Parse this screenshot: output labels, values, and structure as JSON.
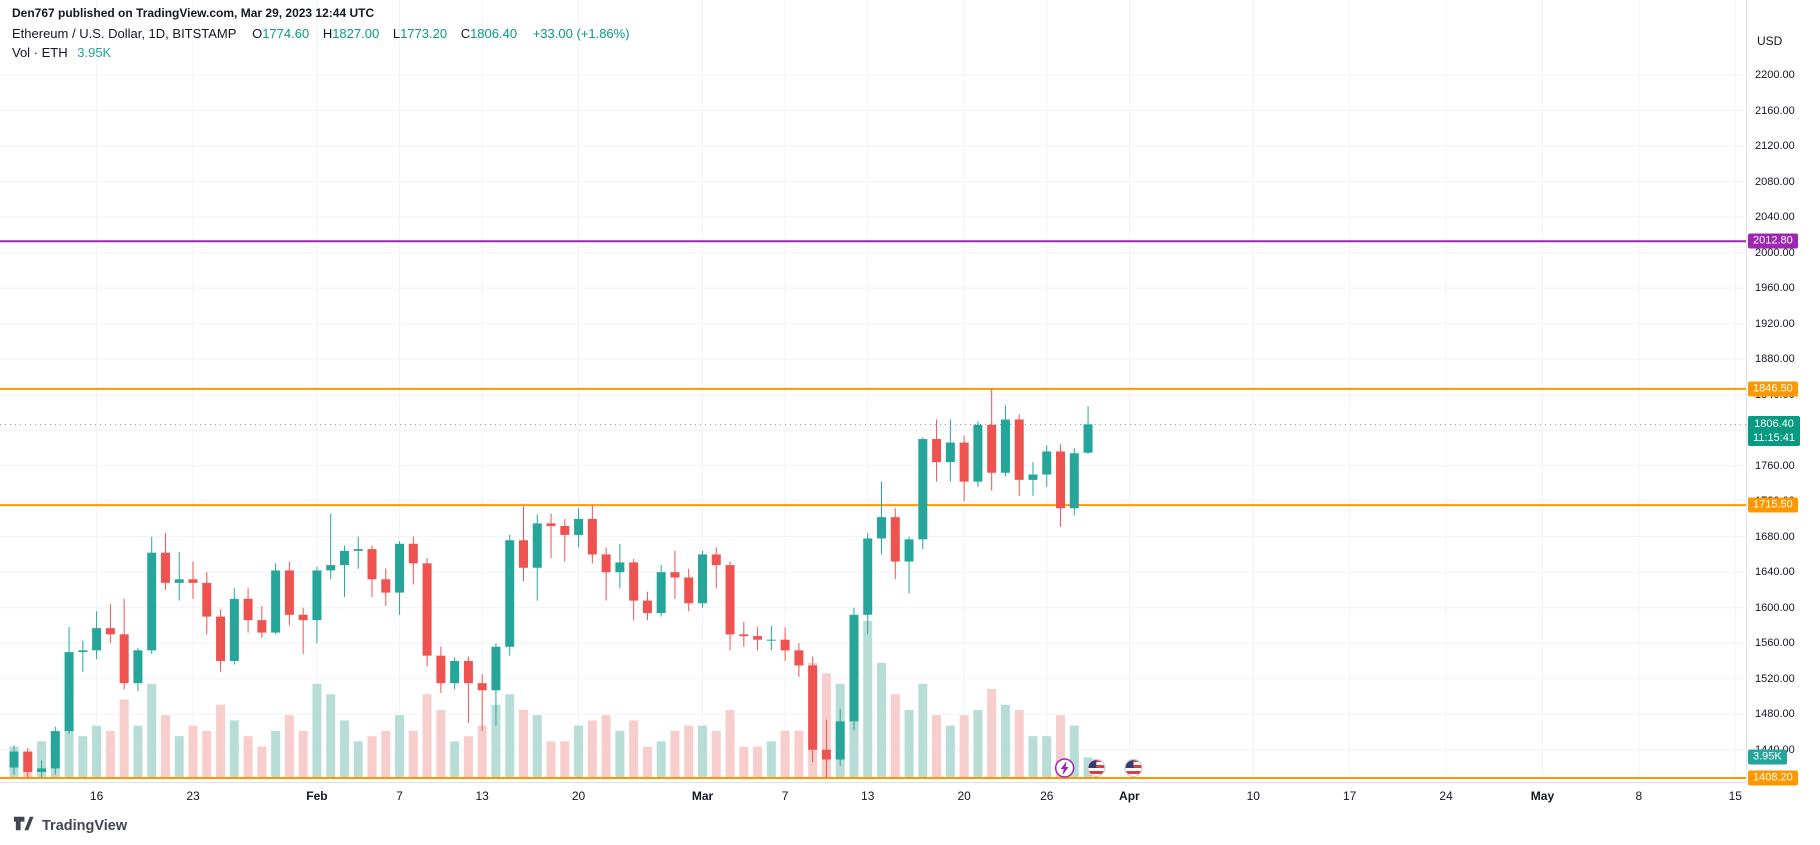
{
  "header": {
    "publish_line": "Den767 published on TradingView.com, Mar 29, 2023 12:44 UTC"
  },
  "legend": {
    "symbol": "Ethereum / U.S. Dollar, 1D, BITSTAMP",
    "ohlc": [
      {
        "k": "O",
        "v": "1774.60"
      },
      {
        "k": "H",
        "v": "1827.00"
      },
      {
        "k": "L",
        "v": "1773.20"
      },
      {
        "k": "C",
        "v": "1806.40"
      }
    ],
    "change": "+33.00 (+1.86%)",
    "vol_label": "Vol · ETH",
    "vol_value": "3.95K"
  },
  "axis": {
    "currency": "USD"
  },
  "footer": {
    "brand": "TradingView"
  },
  "chart_data": {
    "type": "candlestick",
    "title": "Ethereum / U.S. Dollar, 1D, BITSTAMP",
    "pair": "ETH/USD",
    "exchange": "BITSTAMP",
    "interval": "1D",
    "price_range": [
      1408.2,
      2200
    ],
    "up_color": "#26a69a",
    "down_color": "#ef5350",
    "vol_up_color": "#b7ddd6",
    "vol_down_color": "#f8cecd",
    "y_ticks": [
      2200,
      2160,
      2120,
      2080,
      2040,
      2000,
      1960,
      1920,
      1880,
      1840,
      1800,
      1760,
      1720,
      1680,
      1640,
      1600,
      1560,
      1520,
      1480,
      1440
    ],
    "x_ticks": [
      {
        "label": "16",
        "day": 6
      },
      {
        "label": "23",
        "day": 13
      },
      {
        "label": "Feb",
        "day": 22,
        "bold": true
      },
      {
        "label": "7",
        "day": 28
      },
      {
        "label": "13",
        "day": 34
      },
      {
        "label": "20",
        "day": 41
      },
      {
        "label": "Mar",
        "day": 50,
        "bold": true
      },
      {
        "label": "7",
        "day": 56
      },
      {
        "label": "13",
        "day": 62
      },
      {
        "label": "20",
        "day": 69
      },
      {
        "label": "26",
        "day": 75
      },
      {
        "label": "Apr",
        "day": 81,
        "bold": true
      },
      {
        "label": "10",
        "day": 90
      },
      {
        "label": "17",
        "day": 97
      },
      {
        "label": "24",
        "day": 104
      },
      {
        "label": "May",
        "day": 111,
        "bold": true
      },
      {
        "label": "8",
        "day": 118
      },
      {
        "label": "15",
        "day": 125
      }
    ],
    "levels": [
      {
        "price": 2012.8,
        "label": "2012.80",
        "color": "#9c27b0"
      },
      {
        "price": 1846.5,
        "label": "1846.50",
        "color": "#ff9800"
      },
      {
        "price": 1715.5,
        "label": "1715.50",
        "color": "#ff9800"
      },
      {
        "price": 1408.2,
        "label": "1408.20",
        "color": "#ff9800"
      }
    ],
    "last": {
      "price": 1806.4,
      "label": "1806.40",
      "countdown": "11:15:41",
      "color": "#089981"
    },
    "volume": {
      "last_label": "3.95K",
      "color": "#26a69a",
      "max": 30
    },
    "markers": [
      {
        "type": "lightning-event",
        "day": 76.3
      },
      {
        "type": "us-flag-event",
        "day": 78.6
      },
      {
        "type": "us-flag-event",
        "day": 81.3
      }
    ],
    "columns": [
      "date",
      "open",
      "high",
      "low",
      "close",
      "volume_k"
    ],
    "candles": [
      [
        "Jan 10",
        1420,
        1445,
        1412,
        1438,
        6
      ],
      [
        "Jan 11",
        1438,
        1442,
        1408.2,
        1415,
        5
      ],
      [
        "Jan 12",
        1415,
        1428,
        1409,
        1419,
        7
      ],
      [
        "Jan 13",
        1419,
        1466,
        1412,
        1461,
        9
      ],
      [
        "Jan 14",
        1461,
        1578,
        1458,
        1550,
        16
      ],
      [
        "Jan 15",
        1550,
        1563,
        1528,
        1552,
        8
      ],
      [
        "Jan 16",
        1552,
        1596,
        1542,
        1577,
        10
      ],
      [
        "Jan 17",
        1577,
        1604,
        1560,
        1570,
        9
      ],
      [
        "Jan 18",
        1570,
        1610,
        1508,
        1515,
        15
      ],
      [
        "Jan 19",
        1515,
        1555,
        1506,
        1552,
        10
      ],
      [
        "Jan 20",
        1552,
        1680,
        1548,
        1662,
        18
      ],
      [
        "Jan 21",
        1662,
        1684,
        1620,
        1628,
        12
      ],
      [
        "Jan 22",
        1628,
        1663,
        1608,
        1632,
        8
      ],
      [
        "Jan 23",
        1632,
        1652,
        1610,
        1628,
        10
      ],
      [
        "Jan 24",
        1628,
        1640,
        1570,
        1590,
        9
      ],
      [
        "Jan 25",
        1590,
        1598,
        1528,
        1540,
        14
      ],
      [
        "Jan 26",
        1540,
        1622,
        1536,
        1610,
        11
      ],
      [
        "Jan 27",
        1610,
        1622,
        1572,
        1586,
        8
      ],
      [
        "Jan 28",
        1586,
        1602,
        1566,
        1572,
        6
      ],
      [
        "Jan 29",
        1572,
        1650,
        1570,
        1642,
        9
      ],
      [
        "Jan 30",
        1642,
        1652,
        1580,
        1592,
        12
      ],
      [
        "Jan 31",
        1592,
        1600,
        1548,
        1586,
        9
      ],
      [
        "Feb 1",
        1586,
        1646,
        1560,
        1642,
        18
      ],
      [
        "Feb 2",
        1642,
        1706,
        1632,
        1648,
        16
      ],
      [
        "Feb 3",
        1648,
        1670,
        1612,
        1664,
        11
      ],
      [
        "Feb 4",
        1664,
        1680,
        1644,
        1666,
        7
      ],
      [
        "Feb 5",
        1666,
        1670,
        1612,
        1632,
        8
      ],
      [
        "Feb 6",
        1632,
        1644,
        1602,
        1617,
        9
      ],
      [
        "Feb 7",
        1617,
        1675,
        1592,
        1672,
        12
      ],
      [
        "Feb 8",
        1672,
        1680,
        1626,
        1650,
        9
      ],
      [
        "Feb 9",
        1650,
        1656,
        1534,
        1546,
        16
      ],
      [
        "Feb 10",
        1546,
        1556,
        1504,
        1515,
        13
      ],
      [
        "Feb 11",
        1515,
        1544,
        1508,
        1540,
        7
      ],
      [
        "Feb 12",
        1540,
        1545,
        1470,
        1515,
        8
      ],
      [
        "Feb 13",
        1515,
        1525,
        1461,
        1507,
        10
      ],
      [
        "Feb 14",
        1507,
        1560,
        1467,
        1556,
        14
      ],
      [
        "Feb 15",
        1556,
        1682,
        1546,
        1676,
        16
      ],
      [
        "Feb 16",
        1676,
        1714,
        1630,
        1645,
        13
      ],
      [
        "Feb 17",
        1645,
        1705,
        1608,
        1695,
        12
      ],
      [
        "Feb 18",
        1695,
        1706,
        1656,
        1692,
        7
      ],
      [
        "Feb 19",
        1692,
        1700,
        1652,
        1682,
        7
      ],
      [
        "Feb 20",
        1682,
        1712,
        1668,
        1700,
        10
      ],
      [
        "Feb 21",
        1700,
        1715.5,
        1650,
        1660,
        11
      ],
      [
        "Feb 22",
        1660,
        1668,
        1608,
        1640,
        12
      ],
      [
        "Feb 23",
        1640,
        1672,
        1622,
        1651,
        9
      ],
      [
        "Feb 24",
        1651,
        1655,
        1586,
        1608,
        11
      ],
      [
        "Feb 25",
        1608,
        1618,
        1586,
        1594,
        6
      ],
      [
        "Feb 26",
        1594,
        1648,
        1590,
        1640,
        7
      ],
      [
        "Feb 27",
        1640,
        1664,
        1610,
        1634,
        9
      ],
      [
        "Feb 28",
        1634,
        1644,
        1596,
        1605,
        10
      ],
      [
        "Mar 1",
        1605,
        1664,
        1600,
        1660,
        10
      ],
      [
        "Mar 2",
        1660,
        1668,
        1622,
        1648,
        9
      ],
      [
        "Mar 3",
        1648,
        1652,
        1552,
        1570,
        13
      ],
      [
        "Mar 4",
        1570,
        1584,
        1556,
        1568,
        6
      ],
      [
        "Mar 5",
        1568,
        1578,
        1552,
        1564,
        6
      ],
      [
        "Mar 6",
        1564,
        1580,
        1552,
        1564,
        7
      ],
      [
        "Mar 7",
        1564,
        1578,
        1540,
        1552,
        9
      ],
      [
        "Mar 8",
        1552,
        1560,
        1522,
        1535,
        9
      ],
      [
        "Mar 9",
        1535,
        1545,
        1426,
        1440,
        22
      ],
      [
        "Mar 10",
        1440,
        1474,
        1408.2,
        1429,
        20
      ],
      [
        "Mar 11",
        1429,
        1486,
        1422,
        1472,
        18
      ],
      [
        "Mar 12",
        1472,
        1600,
        1462,
        1592,
        28
      ],
      [
        "Mar 13",
        1592,
        1684,
        1570,
        1678,
        30
      ],
      [
        "Mar 14",
        1678,
        1742,
        1660,
        1702,
        22
      ],
      [
        "Mar 15",
        1702,
        1712,
        1632,
        1652,
        16
      ],
      [
        "Mar 16",
        1652,
        1680,
        1616,
        1677,
        13
      ],
      [
        "Mar 17",
        1677,
        1792,
        1666,
        1790,
        18
      ],
      [
        "Mar 18",
        1790,
        1812,
        1742,
        1764,
        12
      ],
      [
        "Mar 19",
        1764,
        1812,
        1742,
        1786,
        10
      ],
      [
        "Mar 20",
        1786,
        1794,
        1720,
        1742,
        12
      ],
      [
        "Mar 21",
        1742,
        1810,
        1736,
        1806,
        13
      ],
      [
        "Mar 22",
        1806,
        1846.5,
        1732,
        1752,
        17
      ],
      [
        "Mar 23",
        1752,
        1828,
        1748,
        1812,
        14
      ],
      [
        "Mar 24",
        1812,
        1818,
        1726,
        1744,
        13
      ],
      [
        "Mar 25",
        1744,
        1764,
        1726,
        1750,
        8
      ],
      [
        "Mar 26",
        1750,
        1783,
        1736,
        1776,
        8
      ],
      [
        "Mar 27",
        1776,
        1784,
        1691,
        1712,
        12
      ],
      [
        "Mar 28",
        1712,
        1780,
        1704,
        1774,
        10
      ],
      [
        "Mar 29",
        1774.6,
        1827,
        1773.2,
        1806.4,
        3.95
      ]
    ]
  }
}
